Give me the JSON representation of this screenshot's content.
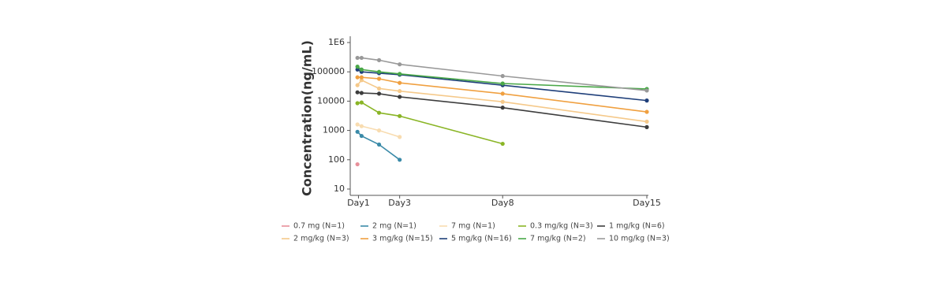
{
  "chart_data": {
    "type": "line",
    "y_label": "Concentration(ng/mL)",
    "log_y": true,
    "xlim": [
      0.6,
      15
    ],
    "xticks": [
      {
        "value": 1,
        "label": "Day1"
      },
      {
        "value": 3,
        "label": "Day3"
      },
      {
        "value": 8,
        "label": "Day8"
      },
      {
        "value": 15,
        "label": "Day15"
      }
    ],
    "ylim": [
      10,
      1000000
    ],
    "yticks": [
      10,
      100,
      1000,
      10000,
      100000,
      {
        "value": 1000000,
        "label": "1E6"
      }
    ],
    "x": [
      0.95,
      1.15,
      2,
      3,
      8,
      15
    ],
    "series": [
      {
        "name": "0.7 mg (N=1)",
        "color": "#e8909a",
        "values": [
          70,
          null,
          null,
          null,
          null,
          null
        ]
      },
      {
        "name": "2 mg (N=1)",
        "color": "#3a8aa8",
        "values": [
          900,
          650,
          330,
          100,
          null,
          null
        ]
      },
      {
        "name": "7 mg (N=1)",
        "color": "#f8dcb0",
        "values": [
          1600,
          1400,
          1000,
          600,
          null,
          null
        ]
      },
      {
        "name": "0.3 mg/kg (N=3)",
        "color": "#8ab526",
        "values": [
          8500,
          9000,
          4000,
          3100,
          350,
          null
        ]
      },
      {
        "name": "1 mg/kg (N=6)",
        "color": "#3d3d3d",
        "values": [
          20000,
          19000,
          18000,
          14000,
          6000,
          1300
        ]
      },
      {
        "name": "2 mg/kg (N=3)",
        "color": "#f5c98a",
        "values": [
          35000,
          52000,
          27000,
          22000,
          9500,
          2000
        ]
      },
      {
        "name": "3 mg/kg (N=15)",
        "color": "#f0a040",
        "values": [
          65000,
          65000,
          58000,
          42000,
          18000,
          4300
        ]
      },
      {
        "name": "5 mg/kg (N=16)",
        "color": "#1f3f7a",
        "values": [
          120000,
          100000,
          90000,
          80000,
          35000,
          10500
        ]
      },
      {
        "name": "7 mg/kg (N=2)",
        "color": "#4aa848",
        "values": [
          150000,
          120000,
          100000,
          85000,
          40000,
          26000
        ]
      },
      {
        "name": "10 mg/kg (N=3)",
        "color": "#999999",
        "values": [
          300000,
          300000,
          250000,
          180000,
          72000,
          23000
        ]
      }
    ]
  }
}
